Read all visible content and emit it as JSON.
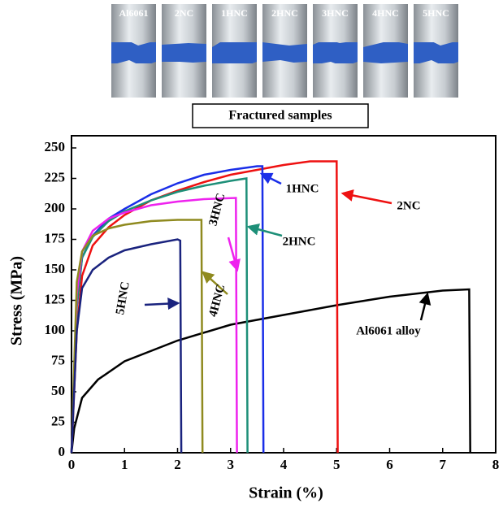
{
  "panel": {
    "labels": [
      "Al6061",
      "2NC",
      "1HNC",
      "2HNC",
      "3HNC",
      "4HNC",
      "5HNC"
    ],
    "caption": "Fractured samples"
  },
  "chart_data": {
    "type": "line",
    "xlabel": "Strain (%)",
    "ylabel": "Stress (MPa)",
    "xlim": [
      0,
      8
    ],
    "ylim": [
      0,
      260
    ],
    "xticks": [
      0,
      1,
      2,
      3,
      4,
      5,
      6,
      7,
      8
    ],
    "yticks": [
      0,
      25,
      50,
      75,
      100,
      125,
      150,
      175,
      200,
      225,
      250
    ],
    "series": [
      {
        "name": "Al6061 alloy",
        "color": "#000000",
        "x": [
          0,
          0.05,
          0.2,
          0.5,
          1,
          2,
          3,
          4,
          5,
          6,
          7,
          7.5,
          7.52
        ],
        "values": [
          0,
          20,
          45,
          60,
          75,
          92,
          105,
          113,
          121,
          128,
          133,
          134,
          0
        ]
      },
      {
        "name": "2NC",
        "color": "#ee1111",
        "x": [
          0,
          0.1,
          0.2,
          0.4,
          0.7,
          1,
          1.5,
          2,
          2.5,
          3,
          3.5,
          4,
          4.5,
          5,
          5.02
        ],
        "values": [
          0,
          100,
          145,
          170,
          185,
          195,
          207,
          215,
          222,
          228,
          232,
          236,
          239,
          239,
          0
        ]
      },
      {
        "name": "1HNC",
        "color": "#1a2ee8",
        "x": [
          0,
          0.1,
          0.2,
          0.4,
          0.7,
          1,
          1.5,
          2,
          2.5,
          3,
          3.5,
          3.6,
          3.62
        ],
        "values": [
          0,
          120,
          160,
          178,
          192,
          200,
          212,
          221,
          228,
          232,
          235,
          235,
          0
        ]
      },
      {
        "name": "2HNC",
        "color": "#1d8f78",
        "x": [
          0,
          0.1,
          0.2,
          0.4,
          0.7,
          1,
          1.5,
          2,
          2.5,
          3,
          3.3,
          3.32
        ],
        "values": [
          0,
          120,
          160,
          177,
          190,
          198,
          207,
          214,
          219,
          223,
          225,
          0
        ]
      },
      {
        "name": "3HNC",
        "color": "#ee22ee",
        "x": [
          0,
          0.1,
          0.2,
          0.4,
          0.7,
          1,
          1.5,
          2,
          2.5,
          3.1,
          3.12
        ],
        "values": [
          0,
          130,
          165,
          182,
          192,
          197,
          203,
          206,
          208,
          209,
          0
        ]
      },
      {
        "name": "4HNC",
        "color": "#8f8a1f",
        "x": [
          0,
          0.1,
          0.2,
          0.4,
          0.7,
          1,
          1.5,
          2,
          2.45,
          2.47
        ],
        "values": [
          0,
          140,
          165,
          178,
          184,
          187,
          190,
          191,
          191,
          0
        ]
      },
      {
        "name": "5HNC",
        "color": "#1a237e",
        "x": [
          0,
          0.1,
          0.2,
          0.4,
          0.7,
          1,
          1.5,
          2,
          2.05,
          2.07
        ],
        "values": [
          0,
          100,
          135,
          150,
          160,
          166,
          171,
          175,
          174,
          0
        ]
      }
    ]
  }
}
